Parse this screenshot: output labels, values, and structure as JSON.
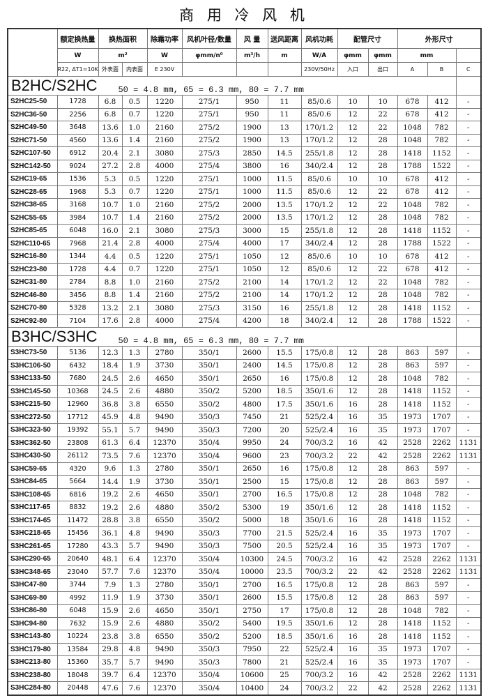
{
  "title": "商 用 冷 风 机",
  "header": {
    "row1": [
      "额定换热量",
      "换热面积",
      "除霜功率",
      "风机叶径/数量",
      "风 量",
      "送风距离",
      "风机功耗",
      "配管尺寸",
      "外形尺寸"
    ],
    "row2": [
      "W",
      "m²",
      "W",
      "φmm/n⁰",
      "m³/h",
      "m",
      "W/A",
      "φmm",
      "φmm",
      "mm"
    ],
    "row3": [
      "R22, ΔT1=10K",
      "外表面",
      "内表面",
      "E  230V",
      "230V/50Hz",
      "入口",
      "出口",
      "A",
      "B",
      "C"
    ]
  },
  "sections": [
    {
      "name": "B2HC/S2HC",
      "note": "50 = 4.8 mm, 65 = 6.3 mm, 80 = 7.7 mm",
      "rows": [
        [
          "S2HC25-50",
          "1728",
          "6.8",
          "0.5",
          "1220",
          "275/1",
          "950",
          "11",
          "85/0.6",
          "10",
          "10",
          "678",
          "412",
          "-"
        ],
        [
          "S2HC36-50",
          "2256",
          "6.8",
          "0.7",
          "1220",
          "275/1",
          "950",
          "11",
          "85/0.6",
          "12",
          "22",
          "678",
          "412",
          "-"
        ],
        [
          "S2HC49-50",
          "3648",
          "13.6",
          "1.0",
          "2160",
          "275/2",
          "1900",
          "13",
          "170/1.2",
          "12",
          "22",
          "1048",
          "782",
          "-"
        ],
        [
          "S2HC71-50",
          "4560",
          "13.6",
          "1.4",
          "2160",
          "275/2",
          "1900",
          "13",
          "170/1.2",
          "12",
          "28",
          "1048",
          "782",
          "-"
        ],
        [
          "S2HC107-50",
          "6912",
          "20.4",
          "2.1",
          "3080",
          "275/3",
          "2850",
          "14.5",
          "255/1.8",
          "12",
          "28",
          "1418",
          "1152",
          "-"
        ],
        [
          "S2HC142-50",
          "9024",
          "27.2",
          "2.8",
          "4000",
          "275/4",
          "3800",
          "16",
          "340/2.4",
          "12",
          "28",
          "1788",
          "1522",
          "-"
        ],
        [
          "S2HC19-65",
          "1536",
          "5.3",
          "0.5",
          "1220",
          "275/1",
          "1000",
          "11.5",
          "85/0.6",
          "10",
          "10",
          "678",
          "412",
          "-"
        ],
        [
          "S2HC28-65",
          "1968",
          "5.3",
          "0.7",
          "1220",
          "275/1",
          "1000",
          "11.5",
          "85/0.6",
          "12",
          "22",
          "678",
          "412",
          "-"
        ],
        [
          "S2HC38-65",
          "3168",
          "10.7",
          "1.0",
          "2160",
          "275/2",
          "2000",
          "13.5",
          "170/1.2",
          "12",
          "22",
          "1048",
          "782",
          "-"
        ],
        [
          "S2HC55-65",
          "3984",
          "10.7",
          "1.4",
          "2160",
          "275/2",
          "2000",
          "13.5",
          "170/1.2",
          "12",
          "28",
          "1048",
          "782",
          "-"
        ],
        [
          "S2HC85-65",
          "6048",
          "16.0",
          "2.1",
          "3080",
          "275/3",
          "3000",
          "15",
          "255/1.8",
          "12",
          "28",
          "1418",
          "1152",
          "-"
        ],
        [
          "S2HC110-65",
          "7968",
          "21.4",
          "2.8",
          "4000",
          "275/4",
          "4000",
          "17",
          "340/2.4",
          "12",
          "28",
          "1788",
          "1522",
          "-"
        ],
        [
          "S2HC16-80",
          "1344",
          "4.4",
          "0.5",
          "1220",
          "275/1",
          "1050",
          "12",
          "85/0.6",
          "10",
          "10",
          "678",
          "412",
          "-"
        ],
        [
          "S2HC23-80",
          "1728",
          "4.4",
          "0.7",
          "1220",
          "275/1",
          "1050",
          "12",
          "85/0.6",
          "12",
          "22",
          "678",
          "412",
          "-"
        ],
        [
          "S2HC31-80",
          "2784",
          "8.8",
          "1.0",
          "2160",
          "275/2",
          "2100",
          "14",
          "170/1.2",
          "12",
          "22",
          "1048",
          "782",
          "-"
        ],
        [
          "S2HC46-80",
          "3456",
          "8.8",
          "1.4",
          "2160",
          "275/2",
          "2100",
          "14",
          "170/1.2",
          "12",
          "28",
          "1048",
          "782",
          "-"
        ],
        [
          "S2HC70-80",
          "5328",
          "13.2",
          "2.1",
          "3080",
          "275/3",
          "3150",
          "16",
          "255/1.8",
          "12",
          "28",
          "1418",
          "1152",
          "-"
        ],
        [
          "S2HC92-80",
          "7104",
          "17.6",
          "2.8",
          "4000",
          "275/4",
          "4200",
          "18",
          "340/2.4",
          "12",
          "28",
          "1788",
          "1522",
          "-"
        ]
      ]
    },
    {
      "name": "B3HC/S3HC",
      "note": "50 = 4.8 mm, 65 = 6.3 mm, 80 = 7.7 mm",
      "rows": [
        [
          "S3HC73-50",
          "5136",
          "12.3",
          "1.3",
          "2780",
          "350/1",
          "2600",
          "15.5",
          "175/0.8",
          "12",
          "28",
          "863",
          "597",
          "-"
        ],
        [
          "S3HC106-50",
          "6432",
          "18.4",
          "1.9",
          "3730",
          "350/1",
          "2400",
          "14.5",
          "175/0.8",
          "12",
          "28",
          "863",
          "597",
          "-"
        ],
        [
          "S3HC133-50",
          "7680",
          "24.5",
          "2.6",
          "4650",
          "350/1",
          "2650",
          "16",
          "175/0.8",
          "12",
          "28",
          "1048",
          "782",
          "-"
        ],
        [
          "S3HC145-50",
          "10368",
          "24.5",
          "2.6",
          "4880",
          "350/2",
          "5200",
          "18.5",
          "350/1.6",
          "12",
          "28",
          "1418",
          "1152",
          "-"
        ],
        [
          "S3HC215-50",
          "12960",
          "36.8",
          "3.8",
          "6550",
          "350/2",
          "4800",
          "17.5",
          "350/1.6",
          "16",
          "28",
          "1418",
          "1152",
          "-"
        ],
        [
          "S3HC272-50",
          "17712",
          "45.9",
          "4.8",
          "9490",
          "350/3",
          "7450",
          "21",
          "525/2.4",
          "16",
          "35",
          "1973",
          "1707",
          "-"
        ],
        [
          "S3HC323-50",
          "19392",
          "55.1",
          "5.7",
          "9490",
          "350/3",
          "7200",
          "20",
          "525/2.4",
          "16",
          "35",
          "1973",
          "1707",
          "-"
        ],
        [
          "S3HC362-50",
          "23808",
          "61.3",
          "6.4",
          "12370",
          "350/4",
          "9950",
          "24",
          "700/3.2",
          "16",
          "42",
          "2528",
          "2262",
          "1131"
        ],
        [
          "S3HC430-50",
          "26112",
          "73.5",
          "7.6",
          "12370",
          "350/4",
          "9600",
          "23",
          "700/3.2",
          "22",
          "42",
          "2528",
          "2262",
          "1131"
        ],
        [
          "S3HC59-65",
          "4320",
          "9.6",
          "1.3",
          "2780",
          "350/1",
          "2650",
          "16",
          "175/0.8",
          "12",
          "28",
          "863",
          "597",
          "-"
        ],
        [
          "S3HC84-65",
          "5664",
          "14.4",
          "1.9",
          "3730",
          "350/1",
          "2500",
          "15",
          "175/0.8",
          "12",
          "28",
          "863",
          "597",
          "-"
        ],
        [
          "S3HC108-65",
          "6816",
          "19.2",
          "2.6",
          "4650",
          "350/1",
          "2700",
          "16.5",
          "175/0.8",
          "12",
          "28",
          "1048",
          "782",
          "-"
        ],
        [
          "S3HC117-65",
          "8832",
          "19.2",
          "2.6",
          "4880",
          "350/2",
          "5300",
          "19",
          "350/1.6",
          "12",
          "28",
          "1418",
          "1152",
          "-"
        ],
        [
          "S3HC174-65",
          "11472",
          "28.8",
          "3.8",
          "6550",
          "350/2",
          "5000",
          "18",
          "350/1.6",
          "16",
          "28",
          "1418",
          "1152",
          "-"
        ],
        [
          "S3HC218-65",
          "15456",
          "36.1",
          "4.8",
          "9490",
          "350/3",
          "7700",
          "21.5",
          "525/2.4",
          "16",
          "35",
          "1973",
          "1707",
          "-"
        ],
        [
          "S3HC261-65",
          "17280",
          "43.3",
          "5.7",
          "9490",
          "350/3",
          "7500",
          "20.5",
          "525/2.4",
          "16",
          "35",
          "1973",
          "1707",
          "-"
        ],
        [
          "S3HC290-65",
          "20640",
          "48.1",
          "6.4",
          "12370",
          "350/4",
          "10300",
          "24.5",
          "700/3.2",
          "16",
          "42",
          "2528",
          "2262",
          "1131"
        ],
        [
          "S3HC348-65",
          "23040",
          "57.7",
          "7.6",
          "12370",
          "350/4",
          "10000",
          "23.5",
          "700/3.2",
          "22",
          "42",
          "2528",
          "2262",
          "1131"
        ],
        [
          "S3HC47-80",
          "3744",
          "7.9",
          "1.3",
          "2780",
          "350/1",
          "2700",
          "16.5",
          "175/0.8",
          "12",
          "28",
          "863",
          "597",
          "-"
        ],
        [
          "S3HC69-80",
          "4992",
          "11.9",
          "1.9",
          "3730",
          "350/1",
          "2600",
          "15.5",
          "175/0.8",
          "12",
          "28",
          "863",
          "597",
          "-"
        ],
        [
          "S3HC86-80",
          "6048",
          "15.9",
          "2.6",
          "4650",
          "350/1",
          "2750",
          "17",
          "175/0.8",
          "12",
          "28",
          "1048",
          "782",
          "-"
        ],
        [
          "S3HC94-80",
          "7632",
          "15.9",
          "2.6",
          "4880",
          "350/2",
          "5400",
          "19.5",
          "350/1.6",
          "12",
          "28",
          "1418",
          "1152",
          "-"
        ],
        [
          "S3HC143-80",
          "10224",
          "23.8",
          "3.8",
          "6550",
          "350/2",
          "5200",
          "18.5",
          "350/1.6",
          "16",
          "28",
          "1418",
          "1152",
          "-"
        ],
        [
          "S3HC179-80",
          "13584",
          "29.8",
          "4.8",
          "9490",
          "350/3",
          "7950",
          "22",
          "525/2.4",
          "16",
          "35",
          "1973",
          "1707",
          "-"
        ],
        [
          "S3HC213-80",
          "15360",
          "35.7",
          "5.7",
          "9490",
          "350/3",
          "7800",
          "21",
          "525/2.4",
          "16",
          "35",
          "1973",
          "1707",
          "-"
        ],
        [
          "S3HC238-80",
          "18048",
          "39.7",
          "6.4",
          "12370",
          "350/4",
          "10600",
          "25",
          "700/3.2",
          "16",
          "42",
          "2528",
          "2262",
          "1131"
        ],
        [
          "S3HC284-80",
          "20448",
          "47.6",
          "7.6",
          "12370",
          "350/4",
          "10400",
          "24",
          "700/3.2",
          "22",
          "42",
          "2528",
          "2262",
          "1131"
        ]
      ]
    }
  ]
}
